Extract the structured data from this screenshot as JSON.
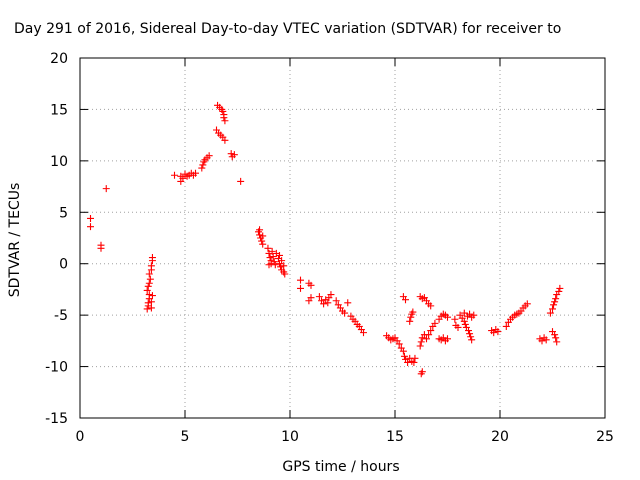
{
  "chart_data": {
    "type": "scatter",
    "title": "Day 291 of 2016, Sidereal Day-to-day VTEC variation (SDTVAR) for receiver to",
    "xlabel": "GPS time / hours",
    "ylabel": "SDTVAR / TECUs",
    "xlim": [
      0,
      25
    ],
    "ylim": [
      -15,
      20
    ],
    "xticks": [
      0,
      5,
      10,
      15,
      20,
      25
    ],
    "yticks": [
      -15,
      -10,
      -5,
      0,
      5,
      10,
      15,
      20
    ],
    "grid": true,
    "marker": "plus",
    "color": "#ff0000",
    "series": [
      {
        "points": [
          [
            0.5,
            4.4
          ],
          [
            0.5,
            3.6
          ],
          [
            1.0,
            1.8
          ],
          [
            1.0,
            1.5
          ],
          [
            1.25,
            7.3
          ],
          [
            3.2,
            -4.4
          ],
          [
            3.25,
            -4.1
          ],
          [
            3.25,
            -3.8
          ],
          [
            3.3,
            -3.4
          ],
          [
            3.3,
            -3.0
          ],
          [
            3.2,
            -2.6
          ],
          [
            3.25,
            -2.2
          ],
          [
            3.3,
            -1.9
          ],
          [
            3.35,
            -1.5
          ],
          [
            3.3,
            -1.0
          ],
          [
            3.4,
            -0.6
          ],
          [
            3.4,
            -0.2
          ],
          [
            3.45,
            0.3
          ],
          [
            3.45,
            0.6
          ],
          [
            3.4,
            -4.3
          ],
          [
            3.4,
            -3.7
          ],
          [
            3.45,
            -3.1
          ],
          [
            4.5,
            8.6
          ],
          [
            4.8,
            8.5
          ],
          [
            4.8,
            8.0
          ],
          [
            4.9,
            8.3
          ],
          [
            5.0,
            8.7
          ],
          [
            5.1,
            8.5
          ],
          [
            5.2,
            8.6
          ],
          [
            5.3,
            8.8
          ],
          [
            5.4,
            8.6
          ],
          [
            5.5,
            8.8
          ],
          [
            5.8,
            9.3
          ],
          [
            5.85,
            9.6
          ],
          [
            5.9,
            9.9
          ],
          [
            5.95,
            10.1
          ],
          [
            6.05,
            10.3
          ],
          [
            6.15,
            10.5
          ],
          [
            6.55,
            15.4
          ],
          [
            6.65,
            15.2
          ],
          [
            6.75,
            15.0
          ],
          [
            6.8,
            14.8
          ],
          [
            6.85,
            14.5
          ],
          [
            6.85,
            14.2
          ],
          [
            6.9,
            13.9
          ],
          [
            6.5,
            13.0
          ],
          [
            6.6,
            12.7
          ],
          [
            6.7,
            12.5
          ],
          [
            6.8,
            12.3
          ],
          [
            6.9,
            12.0
          ],
          [
            7.2,
            10.7
          ],
          [
            7.25,
            10.4
          ],
          [
            7.35,
            10.6
          ],
          [
            7.65,
            8.0
          ],
          [
            8.5,
            3.1
          ],
          [
            8.55,
            2.8
          ],
          [
            8.6,
            2.5
          ],
          [
            8.65,
            2.2
          ],
          [
            8.7,
            1.9
          ],
          [
            8.55,
            3.3
          ],
          [
            8.7,
            2.7
          ],
          [
            8.95,
            1.5
          ],
          [
            9.0,
            1.0
          ],
          [
            9.05,
            0.6
          ],
          [
            9.1,
            0.3
          ],
          [
            9.15,
            1.2
          ],
          [
            9.2,
            0.7
          ],
          [
            9.25,
            0.2
          ],
          [
            9.3,
            -0.1
          ],
          [
            9.0,
            -0.1
          ],
          [
            9.1,
            0.0
          ],
          [
            9.35,
            1.0
          ],
          [
            9.45,
            0.5
          ],
          [
            9.5,
            0.0
          ],
          [
            9.55,
            -0.3
          ],
          [
            9.6,
            -0.6
          ],
          [
            9.7,
            -0.8
          ],
          [
            9.75,
            -1.0
          ],
          [
            9.5,
            0.8
          ],
          [
            9.6,
            0.3
          ],
          [
            9.7,
            -0.2
          ],
          [
            10.5,
            -1.6
          ],
          [
            10.5,
            -2.4
          ],
          [
            10.9,
            -1.9
          ],
          [
            11.0,
            -2.1
          ],
          [
            10.9,
            -3.6
          ],
          [
            11.0,
            -3.3
          ],
          [
            11.4,
            -3.2
          ],
          [
            11.5,
            -3.6
          ],
          [
            11.6,
            -3.9
          ],
          [
            11.7,
            -3.5
          ],
          [
            11.85,
            -3.3
          ],
          [
            11.95,
            -3.0
          ],
          [
            11.8,
            -3.8
          ],
          [
            12.2,
            -3.6
          ],
          [
            12.3,
            -4.0
          ],
          [
            12.4,
            -4.3
          ],
          [
            12.5,
            -4.6
          ],
          [
            12.6,
            -4.8
          ],
          [
            12.75,
            -3.8
          ],
          [
            12.9,
            -5.1
          ],
          [
            13.0,
            -5.4
          ],
          [
            13.1,
            -5.6
          ],
          [
            13.2,
            -5.9
          ],
          [
            13.3,
            -6.1
          ],
          [
            13.4,
            -6.4
          ],
          [
            13.5,
            -6.7
          ],
          [
            14.6,
            -7.0
          ],
          [
            14.7,
            -7.2
          ],
          [
            14.8,
            -7.4
          ],
          [
            14.9,
            -7.3
          ],
          [
            15.0,
            -7.2
          ],
          [
            15.1,
            -7.5
          ],
          [
            15.2,
            -7.8
          ],
          [
            15.3,
            -8.2
          ],
          [
            15.4,
            -8.5
          ],
          [
            15.45,
            -9.0
          ],
          [
            15.5,
            -9.3
          ],
          [
            15.6,
            -9.6
          ],
          [
            15.4,
            -3.2
          ],
          [
            15.5,
            -3.5
          ],
          [
            15.7,
            -5.6
          ],
          [
            15.75,
            -5.2
          ],
          [
            15.8,
            -4.9
          ],
          [
            15.85,
            -4.7
          ],
          [
            15.7,
            -9.2
          ],
          [
            15.8,
            -9.5
          ],
          [
            15.9,
            -9.6
          ],
          [
            15.95,
            -9.2
          ],
          [
            16.2,
            -3.2
          ],
          [
            16.3,
            -3.4
          ],
          [
            16.4,
            -3.3
          ],
          [
            16.5,
            -3.6
          ],
          [
            16.6,
            -3.9
          ],
          [
            16.7,
            -4.1
          ],
          [
            16.2,
            -8.0
          ],
          [
            16.25,
            -7.6
          ],
          [
            16.3,
            -7.2
          ],
          [
            16.4,
            -6.9
          ],
          [
            16.5,
            -7.3
          ],
          [
            16.6,
            -6.9
          ],
          [
            16.7,
            -6.5
          ],
          [
            16.8,
            -6.1
          ],
          [
            16.9,
            -5.8
          ],
          [
            16.25,
            -10.7
          ],
          [
            16.3,
            -10.5
          ],
          [
            17.1,
            -5.4
          ],
          [
            17.2,
            -5.1
          ],
          [
            17.3,
            -4.9
          ],
          [
            17.4,
            -5.0
          ],
          [
            17.5,
            -5.2
          ],
          [
            17.1,
            -7.3
          ],
          [
            17.2,
            -7.4
          ],
          [
            17.3,
            -7.2
          ],
          [
            17.4,
            -7.5
          ],
          [
            17.5,
            -7.3
          ],
          [
            17.85,
            -5.4
          ],
          [
            17.9,
            -6.0
          ],
          [
            18.0,
            -6.2
          ],
          [
            18.1,
            -5.0
          ],
          [
            18.2,
            -5.3
          ],
          [
            18.3,
            -5.6
          ],
          [
            18.35,
            -5.9
          ],
          [
            18.4,
            -6.2
          ],
          [
            18.5,
            -6.5
          ],
          [
            18.55,
            -6.8
          ],
          [
            18.6,
            -7.1
          ],
          [
            18.65,
            -7.4
          ],
          [
            18.3,
            -4.8
          ],
          [
            18.45,
            -5.1
          ],
          [
            18.55,
            -4.9
          ],
          [
            18.65,
            -5.2
          ],
          [
            18.75,
            -5.0
          ],
          [
            19.6,
            -6.5
          ],
          [
            19.7,
            -6.7
          ],
          [
            19.8,
            -6.4
          ],
          [
            19.9,
            -6.6
          ],
          [
            20.3,
            -6.1
          ],
          [
            20.4,
            -5.7
          ],
          [
            20.5,
            -5.4
          ],
          [
            20.6,
            -5.2
          ],
          [
            20.7,
            -5.0
          ],
          [
            20.8,
            -4.9
          ],
          [
            20.9,
            -4.8
          ],
          [
            21.0,
            -4.6
          ],
          [
            21.1,
            -4.3
          ],
          [
            21.2,
            -4.1
          ],
          [
            21.3,
            -3.9
          ],
          [
            21.9,
            -7.3
          ],
          [
            22.0,
            -7.5
          ],
          [
            22.1,
            -7.2
          ],
          [
            22.2,
            -7.4
          ],
          [
            22.4,
            -4.8
          ],
          [
            22.5,
            -4.4
          ],
          [
            22.55,
            -4.0
          ],
          [
            22.6,
            -3.7
          ],
          [
            22.65,
            -3.4
          ],
          [
            22.7,
            -3.0
          ],
          [
            22.8,
            -2.7
          ],
          [
            22.85,
            -2.4
          ],
          [
            22.5,
            -6.6
          ],
          [
            22.6,
            -6.9
          ],
          [
            22.65,
            -7.2
          ],
          [
            22.7,
            -7.6
          ]
        ]
      }
    ]
  }
}
